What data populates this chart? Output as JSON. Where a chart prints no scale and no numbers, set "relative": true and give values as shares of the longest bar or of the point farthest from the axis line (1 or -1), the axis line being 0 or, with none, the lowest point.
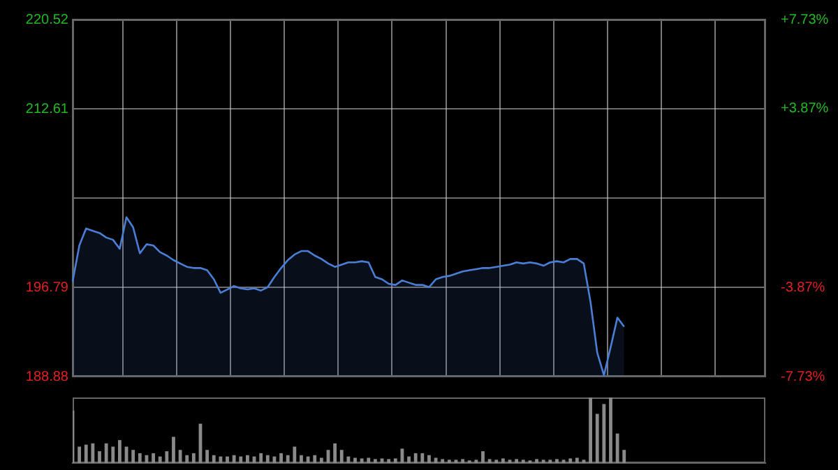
{
  "chart_data": [
    {
      "type": "area",
      "categories": [
        null,
        null,
        null,
        null,
        null,
        null,
        null,
        null,
        null,
        null,
        null,
        null,
        null,
        null,
        null,
        null,
        null,
        null,
        null,
        null,
        null,
        null,
        null,
        null,
        null,
        null,
        null,
        null,
        null,
        null,
        null,
        null,
        null,
        null,
        null,
        null,
        null,
        null,
        null,
        null,
        null,
        null,
        null,
        null,
        null,
        null,
        null,
        null,
        null,
        null,
        null,
        null,
        null,
        null,
        null,
        null,
        null,
        null,
        null,
        null,
        null,
        null,
        null,
        null,
        null,
        null,
        null,
        null,
        null,
        null,
        null,
        null,
        null,
        null,
        null,
        null,
        null,
        null,
        null,
        null,
        null,
        null,
        null,
        null,
        null,
        null,
        null,
        null,
        null,
        null,
        null,
        null,
        null,
        null,
        null,
        null,
        null,
        null,
        null,
        null,
        null,
        null,
        null,
        null
      ],
      "series": [
        {
          "color": "#4a7fd8",
          "values": [
            197.3,
            200.5,
            202.0,
            201.8,
            201.6,
            201.2,
            201.0,
            200.2,
            203.0,
            202.1,
            199.8,
            200.6,
            200.5,
            199.9,
            199.6,
            199.2,
            198.9,
            198.6,
            198.5,
            198.5,
            198.3,
            197.5,
            196.3,
            196.6,
            196.9,
            196.7,
            196.6,
            196.7,
            196.5,
            196.8,
            197.7,
            198.5,
            199.2,
            199.7,
            200.0,
            200.0,
            199.6,
            199.3,
            198.9,
            198.6,
            198.8,
            199.0,
            199.0,
            199.1,
            199.0,
            197.7,
            197.5,
            197.1,
            197.0,
            197.4,
            197.2,
            197.0,
            197.0,
            196.8,
            197.5,
            197.7,
            197.8,
            198.0,
            198.2,
            198.3,
            198.4,
            198.5,
            198.5,
            198.6,
            198.7,
            198.8,
            199.0,
            198.9,
            199.0,
            198.9,
            198.7,
            199.0,
            199.1,
            199.0,
            199.3,
            199.3,
            198.9,
            195.5,
            191.0,
            189.0,
            191.5,
            194.1,
            193.3,
            null,
            null,
            null,
            null,
            null,
            null,
            null,
            null,
            null,
            null,
            null,
            null,
            null,
            null,
            null,
            null,
            null,
            null,
            null,
            null,
            null
          ]
        }
      ],
      "ylim": [
        188.88,
        220.52
      ],
      "yticks": [
        220.52,
        212.61,
        {
          "value": 204.7,
          "label": null
        },
        196.79,
        188.88
      ],
      "y2lim": [
        -7.73,
        7.73
      ],
      "y2ticks": [
        {
          "value": 7.73,
          "label": "+7.73%"
        },
        {
          "value": 3.87,
          "label": "+3.87%"
        },
        {
          "value": 0,
          "label": null
        },
        {
          "value": -3.87,
          "label": "-3.87%"
        },
        {
          "value": -7.73,
          "label": "-7.73%"
        }
      ],
      "tick_labels": "y",
      "grid": true,
      "legend": false
    },
    {
      "type": "bar",
      "relative": true,
      "categories": [
        null,
        null,
        null,
        null,
        null,
        null,
        null,
        null,
        null,
        null,
        null,
        null,
        null,
        null,
        null,
        null,
        null,
        null,
        null,
        null,
        null,
        null,
        null,
        null,
        null,
        null,
        null,
        null,
        null,
        null,
        null,
        null,
        null,
        null,
        null,
        null,
        null,
        null,
        null,
        null,
        null,
        null,
        null,
        null,
        null,
        null,
        null,
        null,
        null,
        null,
        null,
        null,
        null,
        null,
        null,
        null,
        null,
        null,
        null,
        null,
        null,
        null,
        null,
        null,
        null,
        null,
        null,
        null,
        null,
        null,
        null,
        null,
        null,
        null,
        null,
        null,
        null,
        null,
        null,
        null,
        null,
        null,
        null,
        null,
        null,
        null,
        null,
        null,
        null,
        null,
        null,
        null,
        null,
        null,
        null,
        null,
        null,
        null,
        null,
        null,
        null,
        null,
        null,
        null
      ],
      "color": "#8a8a8a",
      "values": [
        0.8,
        0.25,
        0.28,
        0.3,
        0.18,
        0.3,
        0.25,
        0.35,
        0.25,
        0.2,
        0.15,
        0.12,
        0.15,
        0.1,
        0.18,
        0.4,
        0.2,
        0.12,
        0.15,
        0.6,
        0.2,
        0.12,
        0.1,
        0.1,
        0.12,
        0.1,
        0.12,
        0.1,
        0.15,
        0.12,
        0.1,
        0.15,
        0.12,
        0.25,
        0.12,
        0.1,
        0.12,
        0.08,
        0.2,
        0.3,
        0.2,
        0.1,
        0.08,
        0.07,
        0.08,
        0.06,
        0.07,
        0.06,
        0.07,
        0.22,
        0.1,
        0.15,
        0.15,
        0.12,
        0.08,
        0.06,
        0.05,
        0.05,
        0.06,
        0.04,
        0.05,
        0.18,
        0.06,
        0.05,
        0.07,
        0.05,
        0.06,
        0.05,
        0.04,
        0.06,
        0.05,
        0.05,
        0.06,
        0.05,
        0.07,
        0.08,
        0.05,
        1.0,
        0.75,
        0.9,
        1.0,
        0.45,
        0.2,
        null,
        null,
        null,
        null,
        null,
        null,
        null,
        null,
        null,
        null,
        null,
        null,
        null,
        null,
        null,
        null,
        null,
        null,
        null,
        null,
        null
      ],
      "legend": false
    }
  ]
}
